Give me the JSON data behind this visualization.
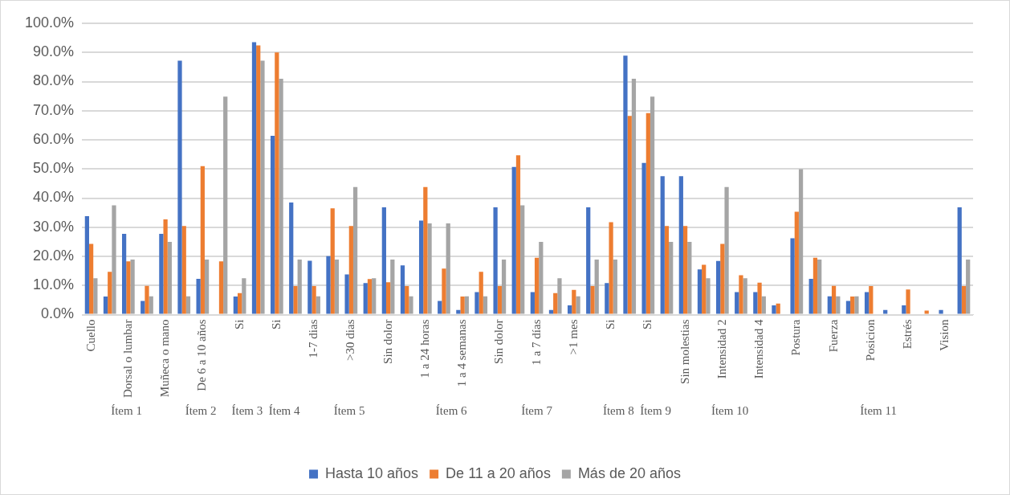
{
  "chart_data": {
    "type": "bar",
    "categories": [
      "Cuello",
      null,
      "Dorsal o lumbar",
      null,
      "Muñeca o mano",
      null,
      "De 6 a 10 años",
      null,
      "Si",
      null,
      "Si",
      null,
      "1-7 dias",
      null,
      ">30 dias",
      null,
      "Sin dolor",
      null,
      "1 a 24 horas",
      null,
      "1 a 4 semanas",
      null,
      "Sin dolor",
      null,
      "1 a 7 días",
      null,
      ">1 mes",
      null,
      "Si",
      null,
      "Si",
      null,
      "Sin molestias",
      null,
      "Intensidad 2",
      null,
      "Intensidad 4",
      null,
      "Postura",
      null,
      "Fuerza",
      null,
      "Posicion",
      null,
      "Estrés",
      null,
      "Vision",
      null
    ],
    "series": [
      {
        "name": "Hasta 10 años",
        "color": "#4472c4",
        "values": [
          33.8,
          6.2,
          27.7,
          4.7,
          27.7,
          87.2,
          12.3,
          0,
          6.2,
          93.5,
          61.4,
          38.5,
          18.5,
          20.1,
          13.8,
          10.8,
          36.8,
          16.9,
          32.3,
          4.7,
          1.6,
          7.7,
          36.8,
          50.7,
          7.7,
          1.6,
          3.2,
          36.8,
          10.8,
          88.9,
          52.1,
          47.5,
          47.5,
          15.5,
          18.4,
          7.7,
          7.7,
          3.2,
          26.2,
          12.3,
          6.3,
          4.7,
          7.7,
          1.6,
          3.2,
          0,
          1.6,
          36.8
        ]
      },
      {
        "name": "De 11 a 20 años",
        "color": "#ed7d31",
        "values": [
          24.3,
          14.7,
          18.3,
          9.9,
          32.7,
          30.4,
          51,
          18.3,
          7.4,
          92.4,
          90,
          9.8,
          9.8,
          36.5,
          30.4,
          12.2,
          11.1,
          9.8,
          43.8,
          15.8,
          6.2,
          14.7,
          9.8,
          54.7,
          19.5,
          7.4,
          8.5,
          9.8,
          31.7,
          68.2,
          69.2,
          30.4,
          30.4,
          17.1,
          24.3,
          13.5,
          11,
          3.8,
          35.3,
          19.5,
          9.9,
          6.2,
          9.8,
          0,
          8.6,
          1.4,
          0,
          9.8
        ]
      },
      {
        "name": "Más de 20 años",
        "color": "#a5a5a5",
        "values": [
          12.5,
          37.5,
          18.9,
          6.3,
          25,
          6.3,
          18.9,
          74.8,
          12.5,
          87.2,
          81,
          18.9,
          6.3,
          18.9,
          43.8,
          12.5,
          18.9,
          6.3,
          31.3,
          31.3,
          6.3,
          6.3,
          18.9,
          37.5,
          25,
          12.5,
          6.3,
          18.9,
          18.9,
          81,
          74.8,
          25,
          25,
          12.5,
          43.8,
          12.5,
          6.3,
          0,
          49.9,
          18.9,
          6.3,
          6.3,
          0,
          0,
          0,
          0,
          0,
          18.9
        ]
      }
    ],
    "ylim": [
      0,
      100
    ],
    "yticks": [
      {
        "value": 0,
        "label": "0.0%"
      },
      {
        "value": 10,
        "label": "10.0%"
      },
      {
        "value": 20,
        "label": "20.0%"
      },
      {
        "value": 30,
        "label": "30.0%"
      },
      {
        "value": 40,
        "label": "40.0%"
      },
      {
        "value": 50,
        "label": "50.0%"
      },
      {
        "value": 60,
        "label": "60.0%"
      },
      {
        "value": 70,
        "label": "70.0%"
      },
      {
        "value": 80,
        "label": "80.0%"
      },
      {
        "value": 90,
        "label": "90.0%"
      },
      {
        "value": 100,
        "label": "100.0%"
      }
    ],
    "grid": "y",
    "legend": "bottom",
    "annotations": [
      "Ítem 1",
      "Ítem 2",
      "Ítem 3",
      "Ítem 4",
      "Ítem 5",
      "Ítem 6",
      "Ítem 7",
      "Ítem 8",
      "Ítem 9",
      "Ítem 10",
      "Ítem 11"
    ]
  }
}
